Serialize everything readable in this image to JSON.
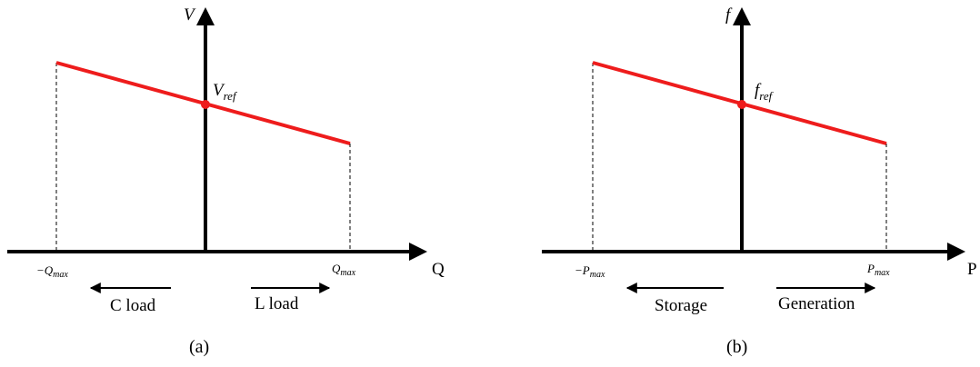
{
  "colors": {
    "droop_line": "#ee1c1c",
    "axis": "#000000",
    "guide": "#000000"
  },
  "panels": [
    {
      "caption": "(a)",
      "y_axis_label": "V",
      "x_axis_label": "Q",
      "ref_label": "V",
      "ref_sub": "ref",
      "min_tick": "−Q",
      "min_tick_sub": "max",
      "max_tick": "Q",
      "max_tick_sub": "max",
      "left_dir_label": "C load",
      "right_dir_label": "L load"
    },
    {
      "caption": "(b)",
      "y_axis_label": "f",
      "x_axis_label": "P",
      "ref_label": "f",
      "ref_sub": "ref",
      "min_tick": "−P",
      "min_tick_sub": "max",
      "max_tick": "P",
      "max_tick_sub": "max",
      "left_dir_label": "Storage",
      "right_dir_label": "Generation"
    }
  ]
}
